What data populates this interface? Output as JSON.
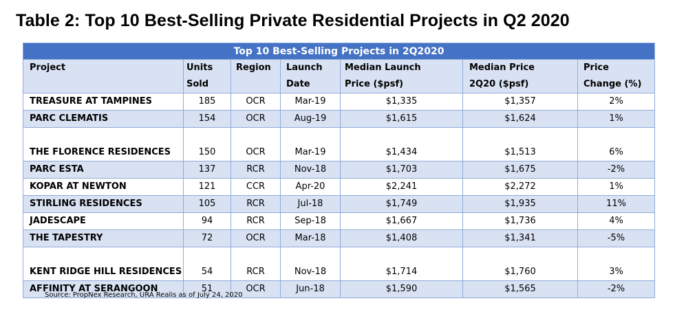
{
  "title": "Table 2: Top 10 Best-Selling Private Residential Projects in Q2 2020",
  "table": {
    "banner": "Top 10 Best-Selling Projects in 2Q2020",
    "headers": [
      {
        "line1": "Project",
        "line2": ""
      },
      {
        "line1": "Units",
        "line2": "Sold"
      },
      {
        "line1": "Region",
        "line2": ""
      },
      {
        "line1": "Launch",
        "line2": "Date"
      },
      {
        "line1": "Median Launch",
        "line2": "Price ($psf)"
      },
      {
        "line1": "Median Price",
        "line2": "2Q20 ($psf)"
      },
      {
        "line1": "Price",
        "line2": "Change (%)"
      }
    ],
    "rows": [
      {
        "project": "TREASURE AT TAMPINES",
        "units": "185",
        "region": "OCR",
        "launch": "Mar-19",
        "median_launch": "$1,335",
        "median_price": "$1,357",
        "change": "2%"
      },
      {
        "project": "PARC CLEMATIS",
        "units": "154",
        "region": "OCR",
        "launch": "Aug-19",
        "median_launch": "$1,615",
        "median_price": "$1,624",
        "change": "1%"
      },
      {
        "project": "THE FLORENCE RESIDENCES",
        "units": "150",
        "region": "OCR",
        "launch": "Mar-19",
        "median_launch": "$1,434",
        "median_price": "$1,513",
        "change": "6%"
      },
      {
        "project": "PARC ESTA",
        "units": "137",
        "region": "RCR",
        "launch": "Nov-18",
        "median_launch": "$1,703",
        "median_price": "$1,675",
        "change": "-2%"
      },
      {
        "project": "KOPAR AT NEWTON",
        "units": "121",
        "region": "CCR",
        "launch": "Apr-20",
        "median_launch": "$2,241",
        "median_price": "$2,272",
        "change": "1%"
      },
      {
        "project": "STIRLING RESIDENCES",
        "units": "105",
        "region": "RCR",
        "launch": "Jul-18",
        "median_launch": "$1,749",
        "median_price": "$1,935",
        "change": "11%"
      },
      {
        "project": "JADESCAPE",
        "units": "94",
        "region": "RCR",
        "launch": "Sep-18",
        "median_launch": "$1,667",
        "median_price": "$1,736",
        "change": "4%"
      },
      {
        "project": "THE TAPESTRY",
        "units": "72",
        "region": "OCR",
        "launch": "Mar-18",
        "median_launch": "$1,408",
        "median_price": "$1,341",
        "change": "-5%"
      },
      {
        "project": "KENT RIDGE HILL RESIDENCES",
        "units": "54",
        "region": "RCR",
        "launch": "Nov-18",
        "median_launch": "$1,714",
        "median_price": "$1,760",
        "change": "3%"
      },
      {
        "project": "AFFINITY AT SERANGOON",
        "units": "51",
        "region": "OCR",
        "launch": "Jun-18",
        "median_launch": "$1,590",
        "median_price": "$1,565",
        "change": "-2%"
      }
    ]
  },
  "source": "Source: PropNex Research, URA Realis as of July 24, 2020",
  "colors": {
    "banner_bg": "#4472c4",
    "row_shade": "#d9e2f3",
    "grid": "#8eaadb"
  }
}
